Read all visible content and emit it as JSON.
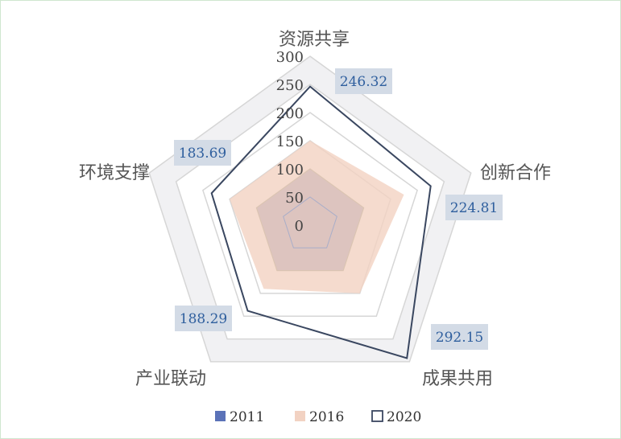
{
  "chart_data": {
    "type": "radar",
    "categories": [
      "资源共享",
      "创新合作",
      "成果共用",
      "产业联动",
      "环境支撑"
    ],
    "radial_ticks": [
      "0",
      "50",
      "100",
      "150",
      "200",
      "250",
      "300"
    ],
    "rlim": [
      0,
      300
    ],
    "series": [
      {
        "name": "2011",
        "values": [
          100,
          100,
          100,
          100,
          100
        ],
        "style": "filled",
        "color": "#7177a8"
      },
      {
        "name": "2016",
        "values": [
          150,
          175,
          150,
          140,
          150
        ],
        "style": "filled",
        "color": "#f2d2c2"
      },
      {
        "name": "2020",
        "values": [
          246.32,
          224.81,
          292.15,
          188.29,
          183.69
        ],
        "style": "outline",
        "color": "#3a4760"
      }
    ],
    "data_labels": [
      "246.32",
      "224.81",
      "292.15",
      "188.29",
      "183.69"
    ],
    "legend_position": "bottom",
    "grid": true,
    "colors": {
      "grid": "#d6d6d6",
      "outer_band": "#f1f1f3",
      "label_box": "#d3dbe6"
    }
  }
}
